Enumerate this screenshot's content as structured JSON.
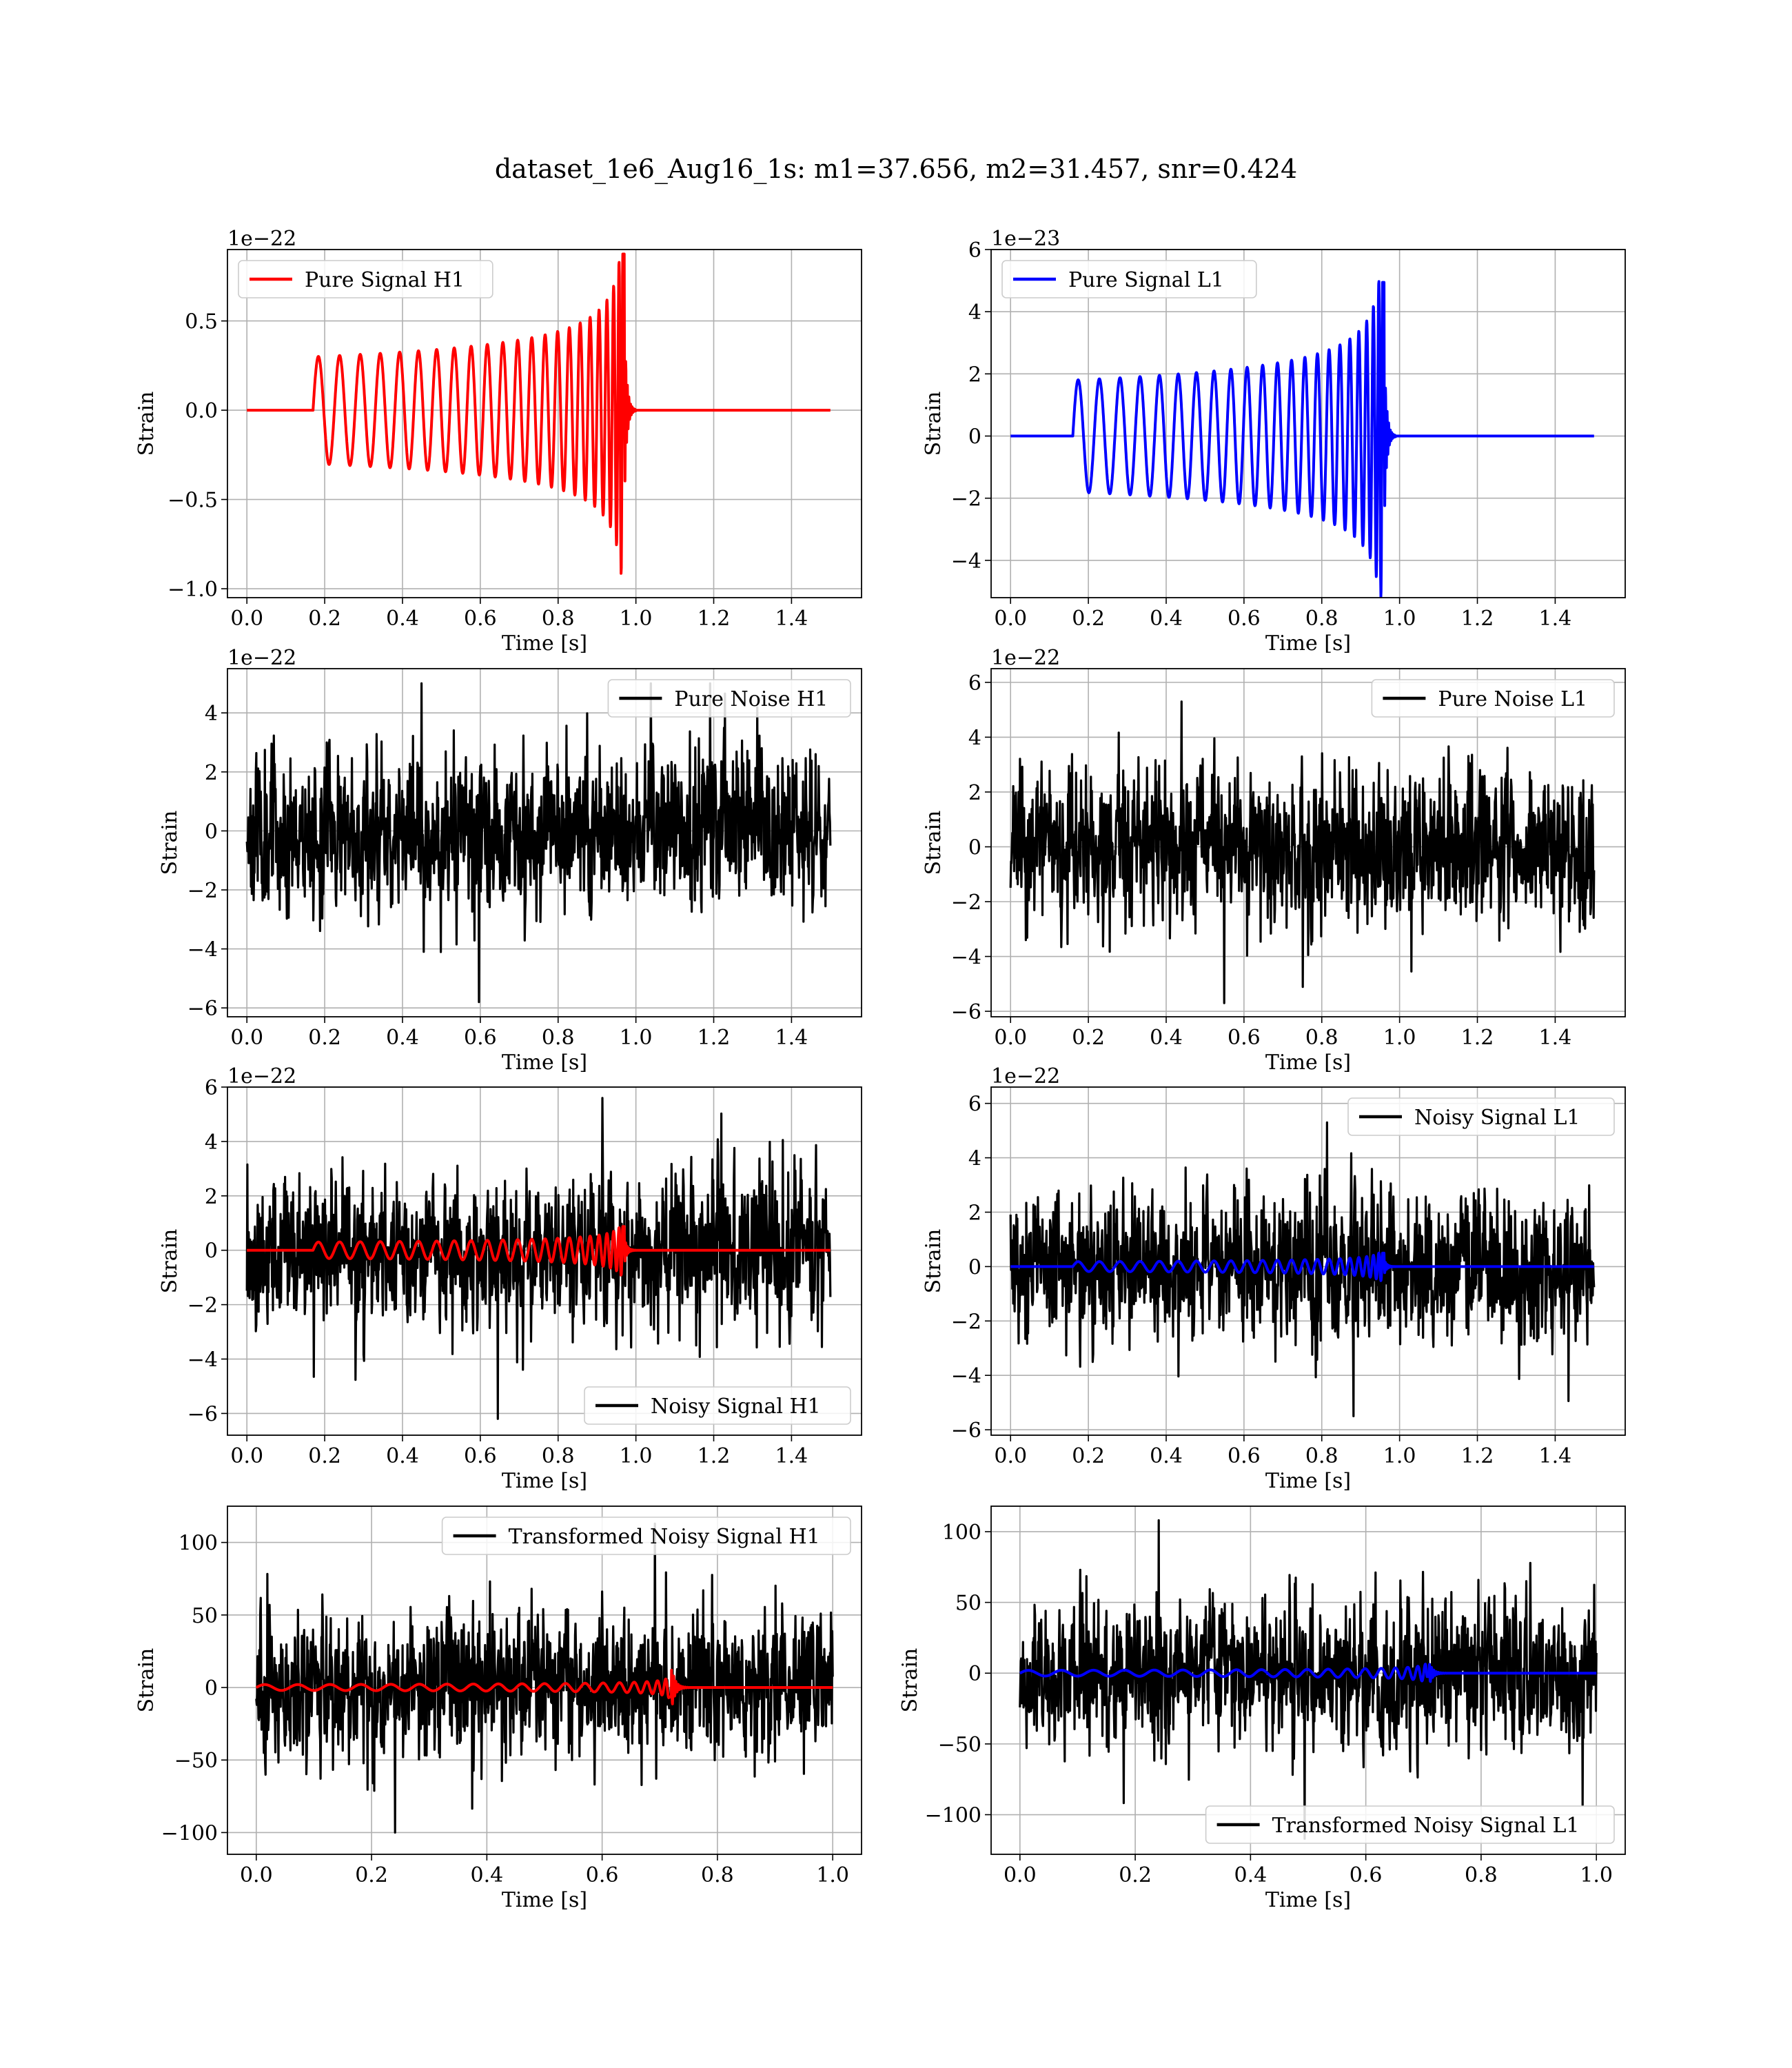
{
  "figure": {
    "title": "dataset_1e6_Aug16_1s: m1=37.656, m2=31.457, snr=0.424"
  },
  "colors": {
    "h1": "#ff0000",
    "l1": "#0000ff",
    "noise": "#000000",
    "grid": "#b0b0b0"
  },
  "chart_data": [
    {
      "id": "pure-signal-h1",
      "type": "line",
      "title": "",
      "xlabel": "Time [s]",
      "ylabel": "Strain",
      "offset_text": "1e−22",
      "xlim": [
        -0.05,
        1.58
      ],
      "ylim": [
        -1.05,
        0.9
      ],
      "xticks": [
        0.0,
        0.2,
        0.4,
        0.6,
        0.8,
        1.0,
        1.2,
        1.4
      ],
      "xtick_labels": [
        "0.0",
        "0.2",
        "0.4",
        "0.6",
        "0.8",
        "1.0",
        "1.2",
        "1.4"
      ],
      "yticks": [
        -1.0,
        -0.5,
        0.0,
        0.5
      ],
      "ytick_labels": [
        "−1.0",
        "−0.5",
        "0.0",
        "0.5"
      ],
      "grid": true,
      "legend_position": "upper-left",
      "series": [
        {
          "name": "Pure Signal H1",
          "color": "#ff0000",
          "kind": "chirp",
          "params": {
            "t0": 0.17,
            "tc": 0.97,
            "duration": 1.5,
            "base_amp": 0.3,
            "peak_amp": 0.92,
            "f0": 18,
            "ringdown_end": 1.0
          }
        }
      ]
    },
    {
      "id": "pure-signal-l1",
      "type": "line",
      "title": "",
      "xlabel": "Time [s]",
      "ylabel": "Strain",
      "offset_text": "1e−23",
      "xlim": [
        -0.05,
        1.58
      ],
      "ylim": [
        -5.2,
        6.0
      ],
      "xticks": [
        0.0,
        0.2,
        0.4,
        0.6,
        0.8,
        1.0,
        1.2,
        1.4
      ],
      "xtick_labels": [
        "0.0",
        "0.2",
        "0.4",
        "0.6",
        "0.8",
        "1.0",
        "1.2",
        "1.4"
      ],
      "yticks": [
        -4,
        -2,
        0,
        2,
        4,
        6
      ],
      "ytick_labels": [
        "−4",
        "−2",
        "0",
        "2",
        "4",
        "6"
      ],
      "grid": true,
      "legend_position": "upper-left",
      "series": [
        {
          "name": "Pure Signal L1",
          "color": "#0000ff",
          "kind": "chirp",
          "params": {
            "t0": 0.16,
            "tc": 0.96,
            "duration": 1.5,
            "base_amp": 1.8,
            "peak_amp": 5.2,
            "f0": 18,
            "ringdown_end": 0.99
          }
        }
      ]
    },
    {
      "id": "pure-noise-h1",
      "type": "line",
      "title": "",
      "xlabel": "Time [s]",
      "ylabel": "Strain",
      "offset_text": "1e−22",
      "xlim": [
        -0.05,
        1.58
      ],
      "ylim": [
        -6.3,
        5.5
      ],
      "xticks": [
        0.0,
        0.2,
        0.4,
        0.6,
        0.8,
        1.0,
        1.2,
        1.4
      ],
      "xtick_labels": [
        "0.0",
        "0.2",
        "0.4",
        "0.6",
        "0.8",
        "1.0",
        "1.2",
        "1.4"
      ],
      "yticks": [
        -6,
        -4,
        -2,
        0,
        2,
        4
      ],
      "ytick_labels": [
        "−6",
        "−4",
        "−2",
        "0",
        "2",
        "4"
      ],
      "grid": true,
      "legend_position": "upper-right",
      "series": [
        {
          "name": "Pure Noise H1",
          "color": "#000000",
          "kind": "noise",
          "params": {
            "duration": 1.5,
            "sigma": 1.45,
            "max": 5.0,
            "min": -5.8,
            "seed": 11
          }
        }
      ]
    },
    {
      "id": "pure-noise-l1",
      "type": "line",
      "title": "",
      "xlabel": "Time [s]",
      "ylabel": "Strain",
      "offset_text": "1e−22",
      "xlim": [
        -0.05,
        1.58
      ],
      "ylim": [
        -6.2,
        6.5
      ],
      "xticks": [
        0.0,
        0.2,
        0.4,
        0.6,
        0.8,
        1.0,
        1.2,
        1.4
      ],
      "xtick_labels": [
        "0.0",
        "0.2",
        "0.4",
        "0.6",
        "0.8",
        "1.0",
        "1.2",
        "1.4"
      ],
      "yticks": [
        -6,
        -4,
        -2,
        0,
        2,
        4,
        6
      ],
      "ytick_labels": [
        "−6",
        "−4",
        "−2",
        "0",
        "2",
        "4",
        "6"
      ],
      "grid": true,
      "legend_position": "upper-right",
      "series": [
        {
          "name": "Pure Noise L1",
          "color": "#000000",
          "kind": "noise",
          "params": {
            "duration": 1.5,
            "sigma": 1.5,
            "max": 5.3,
            "min": -5.7,
            "seed": 23
          }
        }
      ]
    },
    {
      "id": "noisy-signal-h1",
      "type": "line",
      "title": "",
      "xlabel": "Time [s]",
      "ylabel": "Strain",
      "offset_text": "1e−22",
      "xlim": [
        -0.05,
        1.58
      ],
      "ylim": [
        -6.8,
        6.0
      ],
      "xticks": [
        0.0,
        0.2,
        0.4,
        0.6,
        0.8,
        1.0,
        1.2,
        1.4
      ],
      "xtick_labels": [
        "0.0",
        "0.2",
        "0.4",
        "0.6",
        "0.8",
        "1.0",
        "1.2",
        "1.4"
      ],
      "yticks": [
        -6,
        -4,
        -2,
        0,
        2,
        4,
        6
      ],
      "ytick_labels": [
        "−6",
        "−4",
        "−2",
        "0",
        "2",
        "4",
        "6"
      ],
      "grid": true,
      "legend_position": "lower-right",
      "series": [
        {
          "name": "Noisy Signal H1",
          "color": "#000000",
          "kind": "noise",
          "params": {
            "duration": 1.5,
            "sigma": 1.5,
            "max": 5.6,
            "min": -6.2,
            "seed": 37
          }
        },
        {
          "name": "",
          "color": "#ff0000",
          "kind": "chirp",
          "params": {
            "t0": 0.17,
            "tc": 0.97,
            "duration": 1.5,
            "base_amp": 0.3,
            "peak_amp": 0.92,
            "f0": 18,
            "ringdown_end": 1.0
          }
        }
      ]
    },
    {
      "id": "noisy-signal-l1",
      "type": "line",
      "title": "",
      "xlabel": "Time [s]",
      "ylabel": "Strain",
      "offset_text": "1e−22",
      "xlim": [
        -0.05,
        1.58
      ],
      "ylim": [
        -6.2,
        6.6
      ],
      "xticks": [
        0.0,
        0.2,
        0.4,
        0.6,
        0.8,
        1.0,
        1.2,
        1.4
      ],
      "xtick_labels": [
        "0.0",
        "0.2",
        "0.4",
        "0.6",
        "0.8",
        "1.0",
        "1.2",
        "1.4"
      ],
      "yticks": [
        -6,
        -4,
        -2,
        0,
        2,
        4,
        6
      ],
      "ytick_labels": [
        "−6",
        "−4",
        "−2",
        "0",
        "2",
        "4",
        "6"
      ],
      "grid": true,
      "legend_position": "upper-right",
      "series": [
        {
          "name": "Noisy Signal L1",
          "color": "#000000",
          "kind": "noise",
          "params": {
            "duration": 1.5,
            "sigma": 1.5,
            "max": 5.3,
            "min": -5.5,
            "seed": 53
          }
        },
        {
          "name": "",
          "color": "#0000ff",
          "kind": "chirp",
          "params": {
            "t0": 0.16,
            "tc": 0.96,
            "duration": 1.5,
            "base_amp": 0.18,
            "peak_amp": 0.52,
            "f0": 18,
            "ringdown_end": 0.99
          }
        }
      ]
    },
    {
      "id": "transformed-noisy-signal-h1",
      "type": "line",
      "title": "",
      "xlabel": "Time [s]",
      "ylabel": "Strain",
      "offset_text": "",
      "xlim": [
        -0.05,
        1.05
      ],
      "ylim": [
        -115,
        125
      ],
      "xticks": [
        0.0,
        0.2,
        0.4,
        0.6,
        0.8,
        1.0
      ],
      "xtick_labels": [
        "0.0",
        "0.2",
        "0.4",
        "0.6",
        "0.8",
        "1.0"
      ],
      "yticks": [
        -100,
        -50,
        0,
        50,
        100
      ],
      "ytick_labels": [
        "−100",
        "−50",
        "0",
        "50",
        "100"
      ],
      "grid": true,
      "legend_position": "upper-right",
      "series": [
        {
          "name": "Transformed Noisy Signal H1",
          "color": "#000000",
          "kind": "noise",
          "params": {
            "duration": 1.0,
            "sigma": 27,
            "max": 113,
            "min": -100,
            "seed": 71
          }
        },
        {
          "name": "",
          "color": "#ff0000",
          "kind": "chirp",
          "params": {
            "t0": 0.0,
            "tc": 0.72,
            "duration": 1.0,
            "base_amp": 2.0,
            "peak_amp": 27,
            "f0": 17,
            "ringdown_end": 0.75
          }
        }
      ]
    },
    {
      "id": "transformed-noisy-signal-l1",
      "type": "line",
      "title": "",
      "xlabel": "Time [s]",
      "ylabel": "Strain",
      "offset_text": "",
      "xlim": [
        -0.05,
        1.05
      ],
      "ylim": [
        -128,
        118
      ],
      "xticks": [
        0.0,
        0.2,
        0.4,
        0.6,
        0.8,
        1.0
      ],
      "xtick_labels": [
        "0.0",
        "0.2",
        "0.4",
        "0.6",
        "0.8",
        "1.0"
      ],
      "yticks": [
        -100,
        -50,
        0,
        50,
        100
      ],
      "ytick_labels": [
        "−100",
        "−50",
        "0",
        "50",
        "100"
      ],
      "grid": true,
      "legend_position": "lower-right",
      "series": [
        {
          "name": "Transformed Noisy Signal L1",
          "color": "#000000",
          "kind": "noise",
          "params": {
            "duration": 1.0,
            "sigma": 28,
            "max": 108,
            "min": -117,
            "seed": 89
          }
        },
        {
          "name": "",
          "color": "#0000ff",
          "kind": "chirp",
          "params": {
            "t0": 0.0,
            "tc": 0.71,
            "duration": 1.0,
            "base_amp": 2.0,
            "peak_amp": 14,
            "f0": 17,
            "ringdown_end": 0.74
          }
        }
      ]
    }
  ]
}
